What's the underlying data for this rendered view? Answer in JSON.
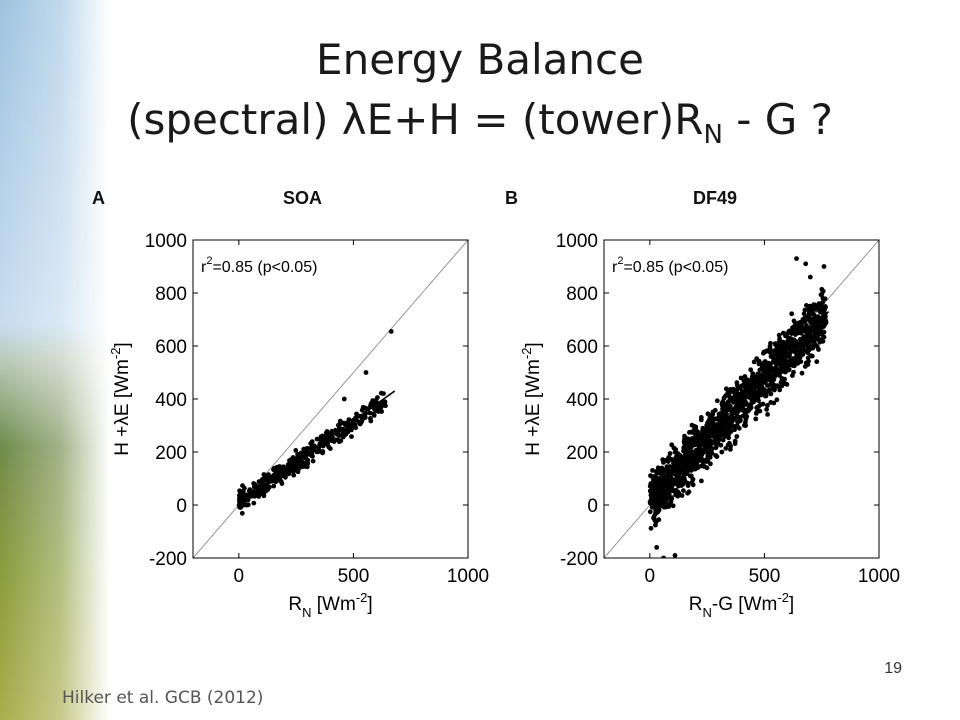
{
  "slide": {
    "title_line1": "Energy Balance",
    "title_line2_pre": "(spectral) λE+H = (tower)R",
    "title_line2_sub": "N",
    "title_line2_post": " - G  ?",
    "page_number": "19",
    "citation": "Hilker et al. GCB (2012)"
  },
  "chart_data": [
    {
      "type": "scatter",
      "panel_label": "A",
      "site_label": "SOA",
      "xlim": [
        -200,
        1000
      ],
      "ylim": [
        -200,
        1000
      ],
      "xticks": [
        0,
        500,
        1000
      ],
      "yticks": [
        1000,
        800,
        600,
        400,
        200,
        0,
        -200
      ],
      "annotation": {
        "pre": "r",
        "sup": "2",
        "post": "=0.85 (p<0.05)"
      },
      "xlabel": {
        "main": "R",
        "sub": "N",
        "post": " [Wm",
        "sup": "-2",
        "end": "]"
      },
      "ylabel": {
        "pre": "H +λE [Wm",
        "sup": "-2",
        "end": "]"
      },
      "one_to_one_line": true,
      "fit_line": [
        [
          0,
          10
        ],
        [
          680,
          430
        ]
      ],
      "points": {
        "n": 420,
        "seed": 11,
        "x_min": 0,
        "x_max": 640,
        "slope": 0.6,
        "intercept": 10,
        "noise": 28,
        "skew": 1.4
      },
      "extra_points": [
        [
          665,
          655
        ],
        [
          555,
          500
        ],
        [
          460,
          400
        ]
      ]
    },
    {
      "type": "scatter",
      "panel_label": "B",
      "site_label": "DF49",
      "xlim": [
        -200,
        1000
      ],
      "ylim": [
        -200,
        1000
      ],
      "xticks": [
        0,
        500,
        1000
      ],
      "yticks": [
        1000,
        800,
        600,
        400,
        200,
        0,
        -200
      ],
      "annotation": {
        "pre": "r",
        "sup": "2",
        "post": "=0.85 (p<0.05)"
      },
      "xlabel": {
        "main": "R",
        "sub": "N",
        "post": "-G [Wm",
        "sup": "-2",
        "end": "]"
      },
      "ylabel": {
        "pre": "H +λE [Wm",
        "sup": "-2",
        "end": "]"
      },
      "one_to_one_line": true,
      "fit_line": [
        [
          0,
          20
        ],
        [
          780,
          730
        ]
      ],
      "points": {
        "n": 1500,
        "seed": 29,
        "x_min": 0,
        "x_max": 770,
        "slope": 0.92,
        "intercept": 15,
        "noise": 75,
        "skew": 1.1
      },
      "extra_points": [
        [
          640,
          930
        ],
        [
          680,
          910
        ],
        [
          760,
          900
        ],
        [
          700,
          860
        ],
        [
          60,
          -200
        ],
        [
          110,
          -190
        ],
        [
          30,
          -160
        ]
      ]
    }
  ]
}
